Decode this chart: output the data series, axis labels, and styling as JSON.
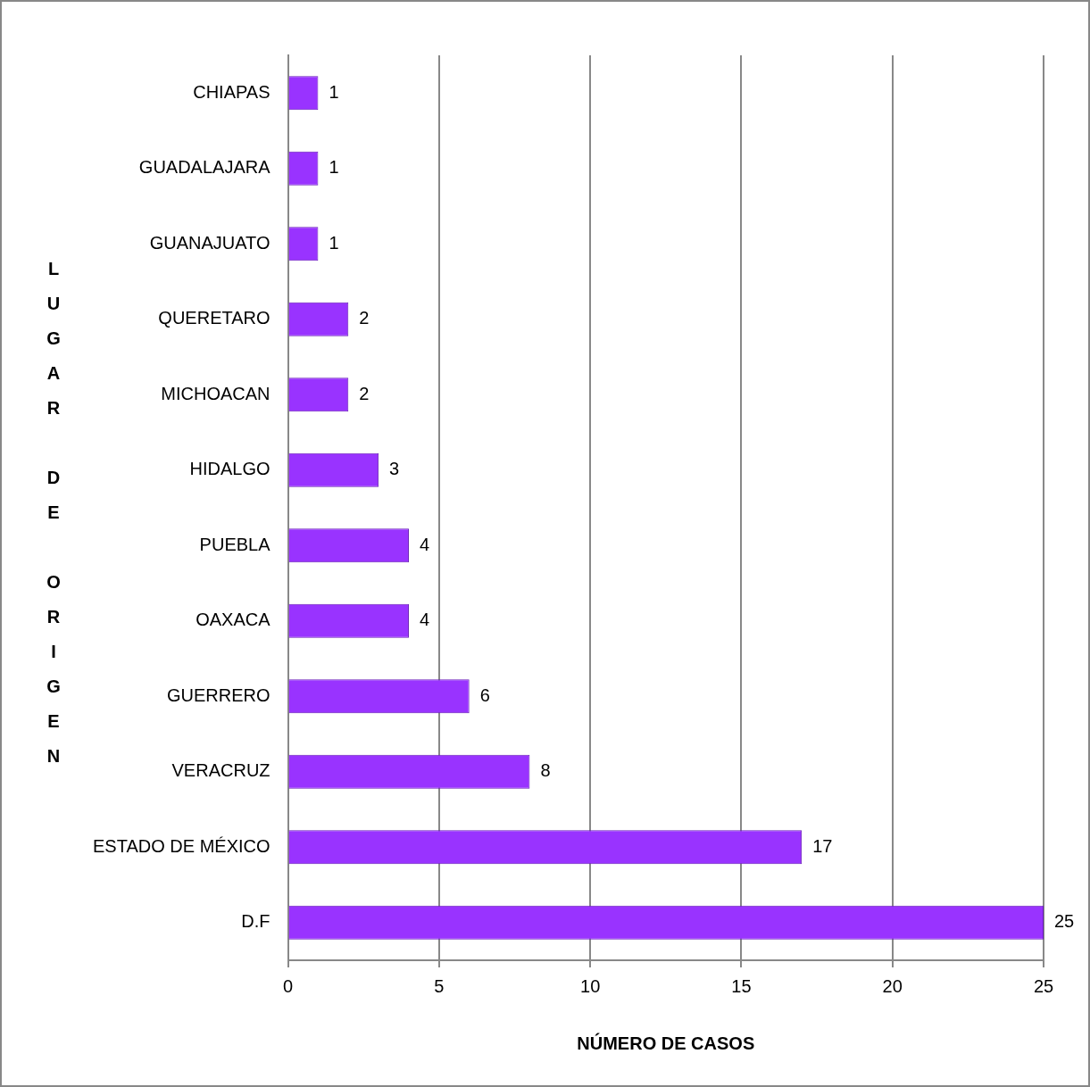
{
  "chart_data": {
    "type": "bar",
    "orientation": "horizontal",
    "xlabel": "NÚMERO DE CASOS",
    "ylabel": "LUGAR DE ORIGEN",
    "categories": [
      "CHIAPAS",
      "GUADALAJARA",
      "GUANAJUATO",
      "QUERETARO",
      "MICHOACAN",
      "HIDALGO",
      "PUEBLA",
      "OAXACA",
      "GUERRERO",
      "VERACRUZ",
      "ESTADO DE MÉXICO",
      "D.F"
    ],
    "values": [
      1,
      1,
      1,
      2,
      2,
      3,
      4,
      4,
      6,
      8,
      17,
      25
    ],
    "color": "#9933ff",
    "xlim": [
      0,
      25
    ],
    "xticks": [
      0,
      5,
      10,
      15,
      20,
      25
    ],
    "grid": "x",
    "data_labels": true
  }
}
